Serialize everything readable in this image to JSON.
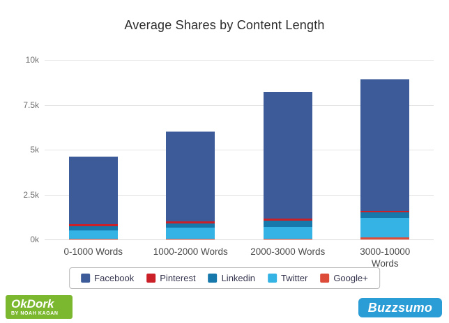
{
  "title": "Average Shares by Content Length",
  "chart_data": {
    "type": "bar",
    "stacked": true,
    "title": "Average Shares by Content Length",
    "categories": [
      "0-1000 Words",
      "1000-2000 Words",
      "2000-3000 Words",
      "3000-10000 Words"
    ],
    "series": [
      {
        "name": "Facebook",
        "color": "#3d5b99",
        "values": [
          3750,
          5000,
          7050,
          7300
        ]
      },
      {
        "name": "Pinterest",
        "color": "#cb2027",
        "values": [
          100,
          100,
          100,
          100
        ]
      },
      {
        "name": "Linkedin",
        "color": "#1779ab",
        "values": [
          250,
          250,
          350,
          300
        ]
      },
      {
        "name": "Twitter",
        "color": "#36b3e5",
        "values": [
          450,
          600,
          650,
          1100
        ]
      },
      {
        "name": "Google+",
        "color": "#dd4b39",
        "values": [
          50,
          50,
          50,
          100
        ]
      }
    ],
    "totals": [
      4600,
      6000,
      8200,
      8900
    ],
    "xlabel": "",
    "ylabel": "",
    "ylim": [
      0,
      10000
    ],
    "yticks": {
      "labels": [
        "0k",
        "2.5k",
        "5k",
        "7.5k",
        "10k"
      ],
      "values": [
        0,
        2500,
        5000,
        7500,
        10000
      ]
    },
    "grid": true,
    "legend_position": "bottom"
  },
  "logos": {
    "okdork": {
      "name": "OkDork",
      "tagline": "BY NOAH KAGAN",
      "color": "#7cb82f"
    },
    "buzzsumo": {
      "name": "Buzzsumo",
      "color": "#2a9cd6"
    }
  }
}
